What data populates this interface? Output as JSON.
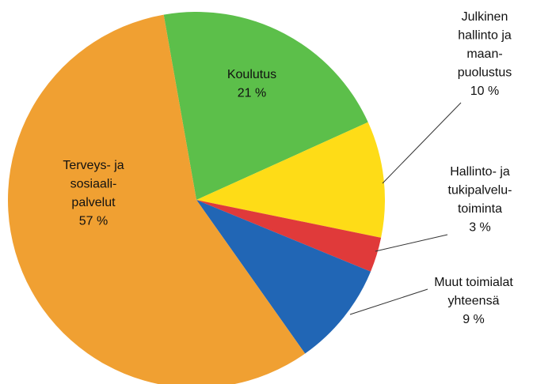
{
  "chart_data": {
    "type": "pie",
    "categories": [
      [
        "Koulutus"
      ],
      [
        "Julkinen",
        "hallinto ja",
        "maan-",
        "puolustus"
      ],
      [
        "Hallinto- ja",
        "tukipalvelu-",
        "toiminta"
      ],
      [
        "Muut toimialat",
        "yhteensä"
      ],
      [
        "Terveys- ja",
        "sosiaali-",
        "palvelut"
      ]
    ],
    "values": [
      21,
      10,
      3,
      9,
      57
    ],
    "value_labels": [
      "21 %",
      "10 %",
      "3 %",
      "9 %",
      "57 %"
    ],
    "colors": [
      "#5cbf4a",
      "#fedc17",
      "#e03a3a",
      "#2166b5",
      "#f0a032"
    ]
  }
}
